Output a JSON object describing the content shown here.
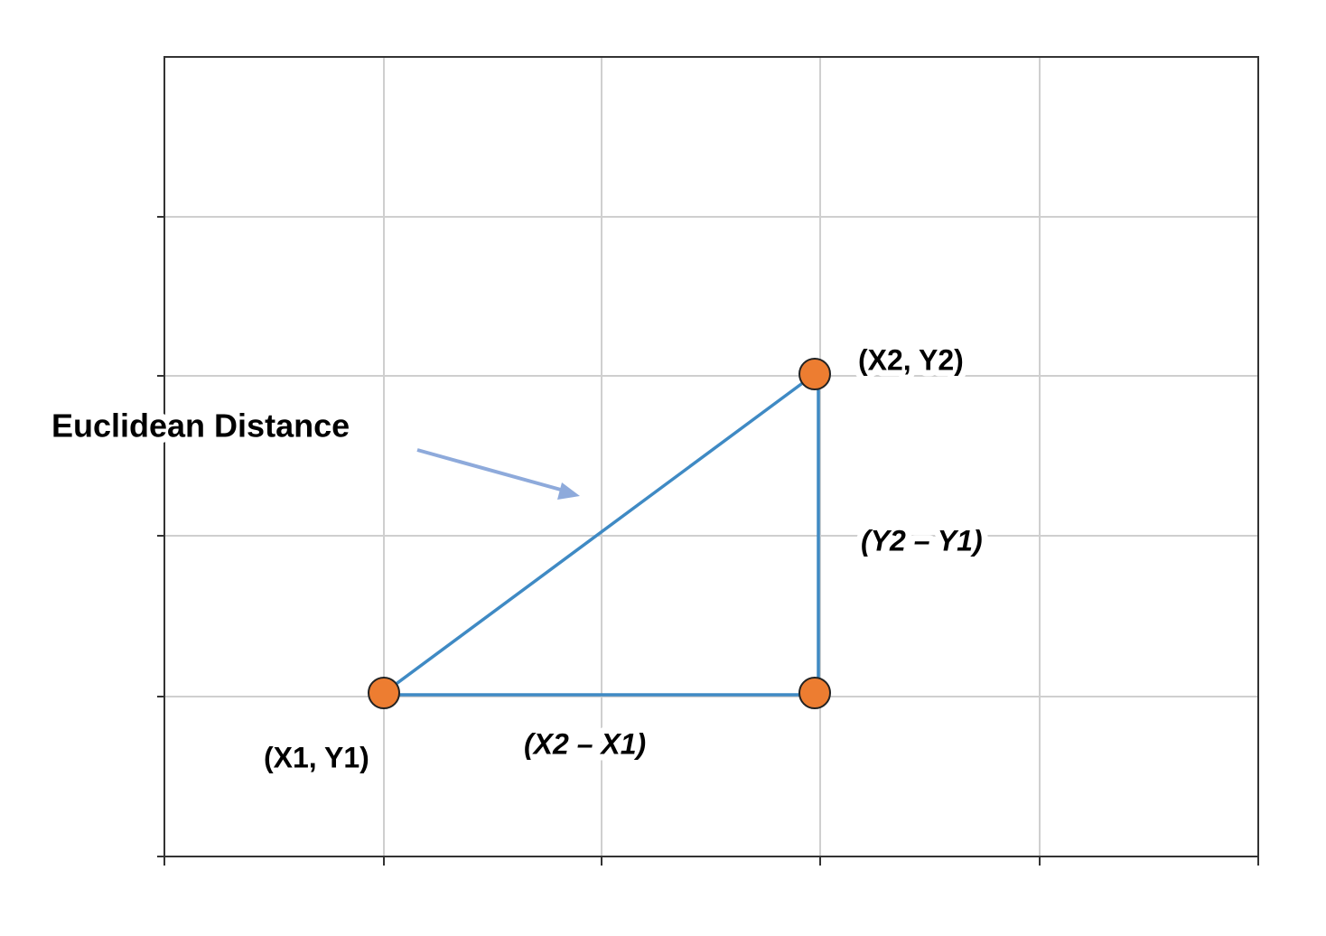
{
  "labels": {
    "distance": "Euclidean Distance",
    "point_2": "(X2, Y2)",
    "dy": "(Y2 – Y1)",
    "point_1": "(X1, Y1)",
    "dx": "(X2 – X1)"
  }
}
